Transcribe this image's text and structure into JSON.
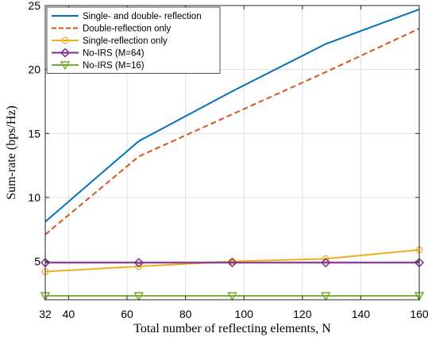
{
  "chart_data": {
    "type": "line",
    "xlabel": "Total number of reflecting elements, N",
    "ylabel": "Sum-rate (bps/Hz)",
    "xlim": [
      32,
      160
    ],
    "ylim": [
      2,
      25
    ],
    "xticks": [
      32,
      40,
      60,
      80,
      100,
      120,
      140,
      160
    ],
    "yticks": [
      5,
      10,
      15,
      20,
      25
    ],
    "grid": true,
    "legend_position": "top-left",
    "series": [
      {
        "name": "Single- and double- reflection",
        "color": "#0072BD",
        "dash": "solid",
        "marker": "none",
        "x": [
          32,
          64,
          96,
          128,
          160
        ],
        "y": [
          8.1,
          14.4,
          18.3,
          22.0,
          24.7
        ]
      },
      {
        "name": "Double-reflection only",
        "color": "#D95319",
        "dash": "dashed",
        "marker": "none",
        "x": [
          32,
          64,
          96,
          128,
          160
        ],
        "y": [
          7.1,
          13.2,
          16.5,
          19.8,
          23.2
        ]
      },
      {
        "name": "Single-reflection only",
        "color": "#EDB120",
        "dash": "solid",
        "marker": "circle",
        "x": [
          32,
          64,
          96,
          128,
          160
        ],
        "y": [
          4.2,
          4.6,
          5.0,
          5.2,
          5.9
        ]
      },
      {
        "name": "No-IRS (M=64)",
        "color": "#7E2F8E",
        "dash": "solid",
        "marker": "diamond",
        "x": [
          32,
          64,
          96,
          128,
          160
        ],
        "y": [
          4.9,
          4.9,
          4.9,
          4.9,
          4.9
        ]
      },
      {
        "name": "No-IRS (M=16)",
        "color": "#77AC30",
        "dash": "solid",
        "marker": "triangle-down",
        "x": [
          32,
          64,
          96,
          128,
          160
        ],
        "y": [
          2.3,
          2.3,
          2.3,
          2.3,
          2.3
        ]
      }
    ]
  }
}
